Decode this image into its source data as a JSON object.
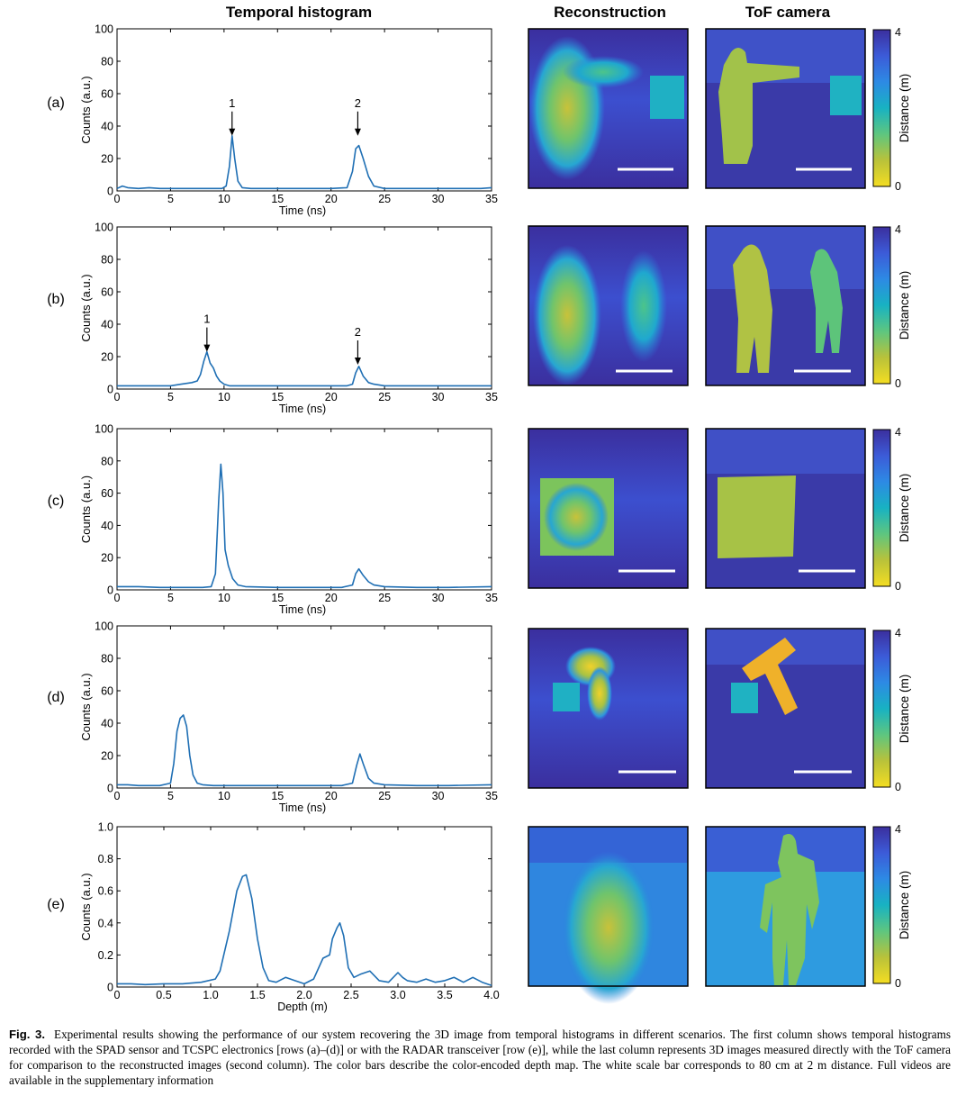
{
  "column_titles": {
    "histogram": "Temporal histogram",
    "reconstruction": "Reconstruction",
    "tof": "ToF camera"
  },
  "colorbar": {
    "label": "Distance (m)",
    "max_label": "4",
    "min_label": "0",
    "colors": [
      "#3b2f9e",
      "#3c5bd8",
      "#2d8ae4",
      "#18b2c2",
      "#5ec67f",
      "#b9c23a",
      "#f4dd22"
    ]
  },
  "colors": {
    "line": "#1f6fb4",
    "scale_bar": "#ffffff"
  },
  "caption": {
    "label": "Fig. 3.",
    "text": "Experimental results showing the performance of our system recovering the 3D image from temporal histograms in different scenarios. The first column shows temporal histograms recorded with the SPAD sensor and TCSPC electronics [rows (a)–(d)] or with the RADAR transceiver [row (e)], while the last column represents 3D images measured directly with the ToF camera for comparison to the reconstructed images (second column). The color bars describe the color-encoded depth map. The white scale bar corresponds to 80 cm at 2 m distance. Full videos are available in the supplementary information"
  },
  "chart_data": [
    {
      "type": "line",
      "row_label": "(a)",
      "xlabel": "Time (ns)",
      "ylabel": "Counts (a.u.)",
      "xlim": [
        0,
        35
      ],
      "ylim": [
        0,
        100
      ],
      "xticks": [
        0,
        5,
        10,
        15,
        20,
        25,
        30,
        35
      ],
      "yticks": [
        0,
        20,
        40,
        60,
        80,
        100
      ],
      "tick_labels_x": [
        "0",
        "5",
        "10",
        "15",
        "20",
        "25",
        "30",
        "35"
      ],
      "tick_labels_y": [
        "0",
        "20",
        "40",
        "60",
        "80",
        "100"
      ],
      "x": [
        0,
        0.5,
        1,
        2,
        3,
        4,
        5,
        6,
        7,
        8,
        9,
        9.8,
        10.2,
        10.5,
        10.75,
        11,
        11.3,
        11.7,
        12.5,
        14,
        16,
        18,
        20,
        21.5,
        22,
        22.3,
        22.6,
        23,
        23.5,
        24,
        25,
        26,
        28,
        30,
        32,
        34,
        35
      ],
      "values": [
        1.5,
        3,
        2,
        1.5,
        2,
        1.5,
        1.5,
        1.5,
        1.5,
        1.5,
        1.5,
        1.5,
        3,
        15,
        34,
        20,
        6,
        2,
        1.5,
        1.5,
        1.5,
        1.5,
        1.5,
        2,
        12,
        26,
        28,
        20,
        9,
        3,
        1.5,
        1.5,
        1.5,
        1.5,
        1.5,
        1.5,
        2
      ],
      "annotations": [
        {
          "label": "1",
          "x": 10.75,
          "y": 44
        },
        {
          "label": "2",
          "x": 22.5,
          "y": 44
        }
      ]
    },
    {
      "type": "line",
      "row_label": "(b)",
      "xlabel": "Time (ns)",
      "ylabel": "Counts (a.u.)",
      "xlim": [
        0,
        35
      ],
      "ylim": [
        0,
        100
      ],
      "xticks": [
        0,
        5,
        10,
        15,
        20,
        25,
        30,
        35
      ],
      "yticks": [
        0,
        20,
        40,
        60,
        80,
        100
      ],
      "tick_labels_x": [
        "0",
        "5",
        "10",
        "15",
        "20",
        "25",
        "30",
        "35"
      ],
      "tick_labels_y": [
        "0",
        "20",
        "40",
        "60",
        "80",
        "100"
      ],
      "x": [
        0,
        1,
        2,
        3,
        4,
        5,
        6,
        7,
        7.5,
        7.8,
        8.1,
        8.4,
        8.7,
        9,
        9.3,
        9.6,
        10,
        10.5,
        12,
        14,
        16,
        18,
        20,
        21.5,
        22,
        22.3,
        22.6,
        23,
        23.5,
        24,
        25,
        27,
        30,
        33,
        35
      ],
      "values": [
        2,
        2,
        2,
        2,
        2,
        2,
        3,
        4,
        5,
        9,
        17,
        23,
        16,
        13,
        8,
        5,
        3,
        2,
        2,
        2,
        2,
        2,
        2,
        2,
        3,
        10,
        14,
        8,
        4,
        3,
        2,
        2,
        2,
        2,
        2
      ],
      "annotations": [
        {
          "label": "1",
          "x": 8.4,
          "y": 33
        },
        {
          "label": "2",
          "x": 22.5,
          "y": 25
        }
      ]
    },
    {
      "type": "line",
      "row_label": "(c)",
      "xlabel": "Time (ns)",
      "ylabel": "Counts (a.u.)",
      "xlim": [
        0,
        35
      ],
      "ylim": [
        0,
        100
      ],
      "xticks": [
        0,
        5,
        10,
        15,
        20,
        25,
        30,
        35
      ],
      "yticks": [
        0,
        20,
        40,
        60,
        80,
        100
      ],
      "tick_labels_x": [
        "0",
        "5",
        "10",
        "15",
        "20",
        "25",
        "30",
        "35"
      ],
      "tick_labels_y": [
        "0",
        "20",
        "40",
        "60",
        "80",
        "100"
      ],
      "x": [
        0,
        2,
        4,
        6,
        8,
        8.8,
        9.2,
        9.5,
        9.7,
        9.9,
        10.1,
        10.4,
        10.8,
        11.3,
        12,
        15,
        18,
        21,
        22,
        22.3,
        22.6,
        23,
        23.5,
        24,
        25,
        28,
        31,
        35
      ],
      "values": [
        2,
        2,
        1.5,
        1.5,
        1.5,
        2,
        10,
        55,
        78,
        60,
        25,
        15,
        7,
        3,
        2,
        1.5,
        1.5,
        1.5,
        3,
        10,
        13,
        9,
        5,
        3,
        2,
        1.5,
        1.5,
        2
      ]
    },
    {
      "type": "line",
      "row_label": "(d)",
      "xlabel": "Time (ns)",
      "ylabel": "Counts (a.u.)",
      "xlim": [
        0,
        35
      ],
      "ylim": [
        0,
        100
      ],
      "xticks": [
        0,
        5,
        10,
        15,
        20,
        25,
        30,
        35
      ],
      "yticks": [
        0,
        20,
        40,
        60,
        80,
        100
      ],
      "tick_labels_x": [
        "0",
        "5",
        "10",
        "15",
        "20",
        "25",
        "30",
        "35"
      ],
      "tick_labels_y": [
        "0",
        "20",
        "40",
        "60",
        "80",
        "100"
      ],
      "x": [
        0,
        1,
        2,
        3,
        4,
        5,
        5.3,
        5.6,
        5.9,
        6.2,
        6.5,
        6.8,
        7.1,
        7.5,
        8,
        9,
        12,
        15,
        18,
        21,
        22,
        22.4,
        22.7,
        23,
        23.5,
        24,
        25,
        28,
        31,
        35
      ],
      "values": [
        2,
        2,
        1.5,
        1.5,
        1.5,
        3,
        15,
        35,
        43,
        45,
        38,
        20,
        8,
        3,
        2,
        1.5,
        1.5,
        1.5,
        1.5,
        1.5,
        3,
        14,
        21,
        15,
        6,
        3,
        2,
        1.5,
        1.5,
        2
      ]
    },
    {
      "type": "line",
      "row_label": "(e)",
      "xlabel": "Depth (m)",
      "ylabel": "Counts (a.u.)",
      "xlim": [
        0,
        4
      ],
      "ylim": [
        0,
        1
      ],
      "xticks": [
        0,
        0.5,
        1,
        1.5,
        2,
        2.5,
        3,
        3.5,
        4
      ],
      "yticks": [
        0,
        0.2,
        0.4,
        0.6,
        0.8,
        1
      ],
      "tick_labels_x": [
        "0",
        "0.5",
        "1.0",
        "1.5",
        "2.0",
        "2.5",
        "3.0",
        "3.5",
        "4.0"
      ],
      "tick_labels_y": [
        "0",
        "0.2",
        "0.4",
        "0.6",
        "0.8",
        "1.0"
      ],
      "x": [
        0,
        0.15,
        0.3,
        0.5,
        0.7,
        0.9,
        1.05,
        1.1,
        1.2,
        1.28,
        1.34,
        1.38,
        1.44,
        1.5,
        1.56,
        1.62,
        1.7,
        1.8,
        1.9,
        2.0,
        2.1,
        2.2,
        2.27,
        2.3,
        2.35,
        2.38,
        2.42,
        2.47,
        2.53,
        2.6,
        2.7,
        2.8,
        2.9,
        3.0,
        3.05,
        3.1,
        3.2,
        3.3,
        3.4,
        3.5,
        3.6,
        3.7,
        3.8,
        3.9,
        4.0
      ],
      "values": [
        0.02,
        0.02,
        0.015,
        0.02,
        0.02,
        0.03,
        0.05,
        0.1,
        0.35,
        0.6,
        0.69,
        0.7,
        0.55,
        0.3,
        0.12,
        0.04,
        0.03,
        0.06,
        0.04,
        0.02,
        0.05,
        0.18,
        0.2,
        0.3,
        0.37,
        0.4,
        0.32,
        0.12,
        0.06,
        0.08,
        0.1,
        0.04,
        0.03,
        0.09,
        0.06,
        0.04,
        0.03,
        0.05,
        0.03,
        0.04,
        0.06,
        0.03,
        0.06,
        0.03,
        0.01
      ]
    }
  ]
}
